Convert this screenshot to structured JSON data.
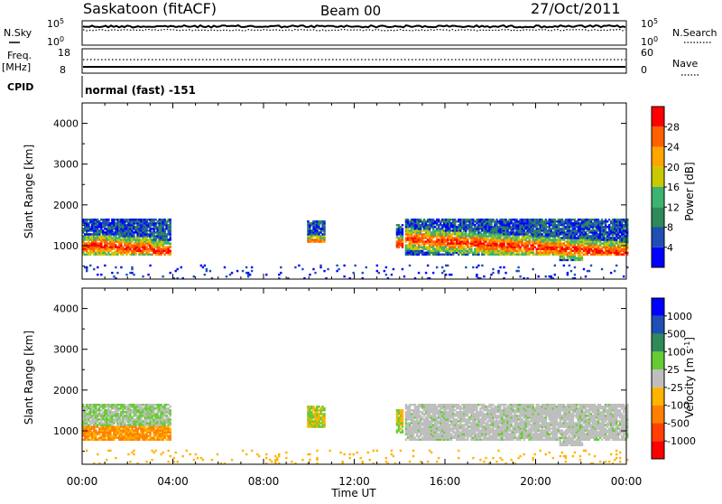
{
  "header": {
    "station": "Saskatoon (fitACF)",
    "beam": "Beam 00",
    "date": "27/Oct/2011"
  },
  "noise_panel": {
    "left_label": "N.Sky",
    "right_label": "N.Search",
    "ticks_left": [
      "10^5",
      "10^0"
    ],
    "ticks_right": [
      "10^5",
      "10^0"
    ]
  },
  "freq_panel": {
    "left_label": "Freq.",
    "left_unit": "[MHz]",
    "right_label": "Nave",
    "ticks_left": [
      "18",
      "8"
    ],
    "ticks_right": [
      "60",
      "0"
    ]
  },
  "cpid": {
    "label": "CPID",
    "value": "normal (fast) -151"
  },
  "colors": {
    "power": [
      "#0000ff",
      "#1f4fb4",
      "#2e8a58",
      "#3cb371",
      "#c9c900",
      "#ffa500",
      "#ff6000",
      "#ff0000"
    ],
    "velocity": [
      "#0000ff",
      "#1f4fb4",
      "#2e8a58",
      "#66cc33",
      "#bebebe",
      "#ffb400",
      "#ff8000",
      "#ff4000",
      "#ff0000"
    ],
    "ground_scatter": "#bebebe"
  },
  "chart_data": [
    {
      "type": "heatmap",
      "name": "power",
      "ylabel": "Slant Range [km]",
      "ylim": [
        180,
        4500
      ],
      "yticks": [
        "1000",
        "2000",
        "3000",
        "4000"
      ],
      "colorbar_label": "Power [dB]",
      "colorbar_ticks": [
        "4",
        "8",
        "12",
        "16",
        "20",
        "24",
        "28"
      ],
      "colorbar_range": [
        0,
        32
      ]
    },
    {
      "type": "heatmap",
      "name": "velocity",
      "ylabel": "Slant Range [km]",
      "ylim": [
        180,
        4500
      ],
      "yticks": [
        "1000",
        "2000",
        "3000",
        "4000"
      ],
      "colorbar_label": "Velocity [m s^-1]",
      "colorbar_ticks": [
        "1000",
        "500",
        "100",
        "25",
        "-25",
        "-100",
        "-500",
        "-1000"
      ]
    }
  ],
  "x_axis": {
    "label": "Time UT",
    "ticks": [
      "00:00",
      "04:00",
      "08:00",
      "12:00",
      "16:00",
      "20:00",
      "00:00"
    ],
    "range_hours": [
      0,
      24
    ]
  }
}
